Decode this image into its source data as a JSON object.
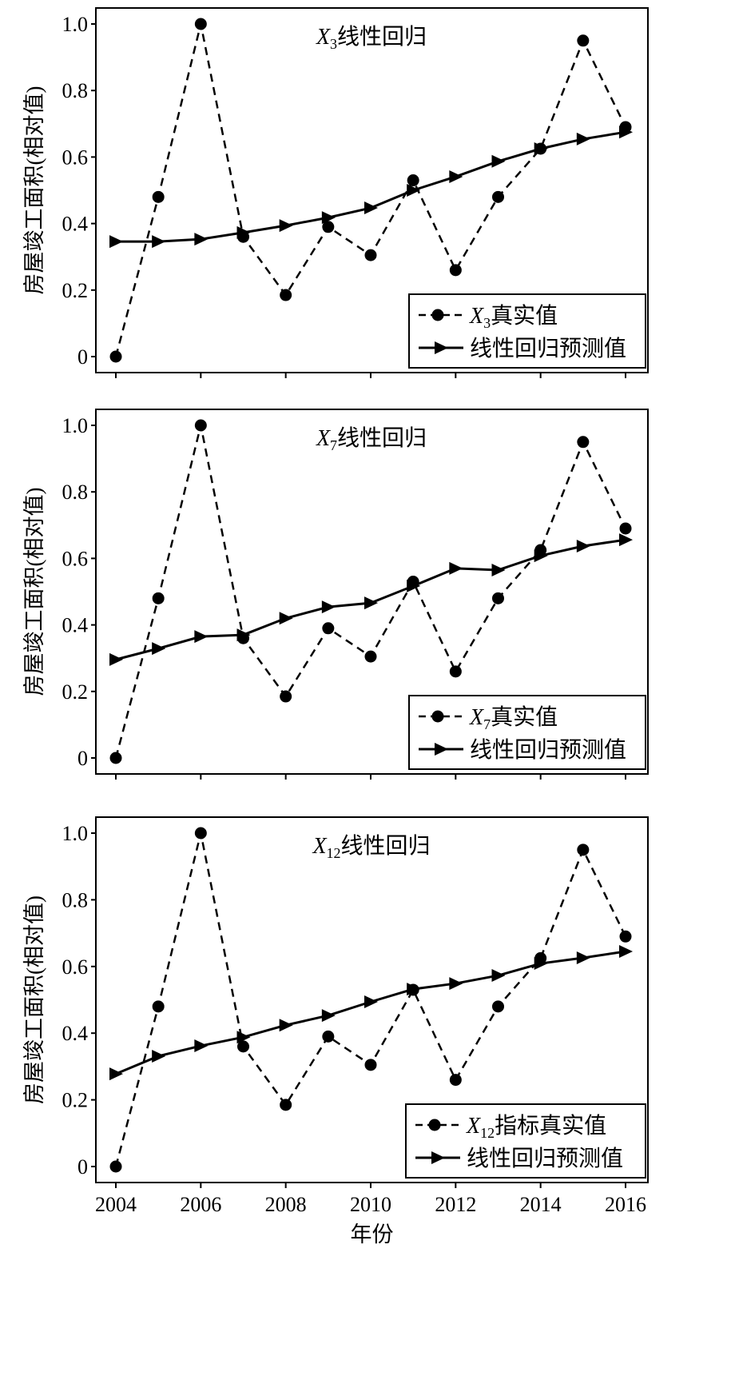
{
  "chart_data": [
    {
      "type": "line",
      "title": {
        "var": "X",
        "sub": "3",
        "text": "线性回归"
      },
      "ylabel": "房屋竣工面积(相对值)",
      "xlabel": "",
      "ylim": [
        0,
        1.0
      ],
      "yticks": [
        "0",
        "0.2",
        "0.4",
        "0.6",
        "0.8",
        "1.0"
      ],
      "x": [
        2004,
        2005,
        2006,
        2007,
        2008,
        2009,
        2010,
        2011,
        2012,
        2013,
        2014,
        2015,
        2016
      ],
      "legend_position": "bottom-right",
      "series": [
        {
          "name": "X3真实值",
          "legend": {
            "var": "X",
            "sub": "3",
            "text": "真实值"
          },
          "style": "dashed-circle",
          "values": [
            0,
            0.48,
            1.0,
            0.36,
            0.185,
            0.39,
            0.305,
            0.53,
            0.26,
            0.48,
            0.625,
            0.95,
            0.69
          ]
        },
        {
          "name": "线性回归预测值",
          "legend": {
            "var": "",
            "sub": "",
            "text": "线性回归预测值"
          },
          "style": "solid-triangle",
          "values": [
            0.346,
            0.346,
            0.353,
            0.373,
            0.394,
            0.418,
            0.447,
            0.5,
            0.541,
            0.587,
            0.625,
            0.654,
            0.675
          ]
        }
      ]
    },
    {
      "type": "line",
      "title": {
        "var": "X",
        "sub": "7",
        "text": "线性回归"
      },
      "ylabel": "房屋竣工面积(相对值)",
      "xlabel": "",
      "ylim": [
        0,
        1.0
      ],
      "yticks": [
        "0",
        "0.2",
        "0.4",
        "0.6",
        "0.8",
        "1.0"
      ],
      "x": [
        2004,
        2005,
        2006,
        2007,
        2008,
        2009,
        2010,
        2011,
        2012,
        2013,
        2014,
        2015,
        2016
      ],
      "legend_position": "bottom-right",
      "series": [
        {
          "name": "X7真实值",
          "legend": {
            "var": "X",
            "sub": "7",
            "text": "真实值"
          },
          "style": "dashed-circle",
          "values": [
            0,
            0.48,
            1.0,
            0.36,
            0.185,
            0.39,
            0.305,
            0.53,
            0.26,
            0.48,
            0.625,
            0.95,
            0.69
          ]
        },
        {
          "name": "线性回归预测值",
          "legend": {
            "var": "",
            "sub": "",
            "text": "线性回归预测值"
          },
          "style": "solid-triangle",
          "values": [
            0.296,
            0.329,
            0.365,
            0.37,
            0.42,
            0.454,
            0.466,
            0.517,
            0.57,
            0.565,
            0.608,
            0.637,
            0.656
          ]
        }
      ]
    },
    {
      "type": "line",
      "title": {
        "var": "X",
        "sub": "12",
        "text": "线性回归"
      },
      "ylabel": "房屋竣工面积(相对值)",
      "xlabel": "年份",
      "ylim": [
        0,
        1.0
      ],
      "yticks": [
        "0",
        "0.2",
        "0.4",
        "0.6",
        "0.8",
        "1.0"
      ],
      "xticks": [
        "2004",
        "2006",
        "2008",
        "2010",
        "2012",
        "2014",
        "2016"
      ],
      "x": [
        2004,
        2005,
        2006,
        2007,
        2008,
        2009,
        2010,
        2011,
        2012,
        2013,
        2014,
        2015,
        2016
      ],
      "legend_position": "bottom-right",
      "series": [
        {
          "name": "X12指标真实值",
          "legend": {
            "var": "X",
            "sub": "12",
            "text": "指标真实值"
          },
          "style": "dashed-circle",
          "values": [
            0,
            0.48,
            1.0,
            0.36,
            0.185,
            0.39,
            0.305,
            0.53,
            0.26,
            0.48,
            0.625,
            0.95,
            0.69
          ]
        },
        {
          "name": "线性回归预测值",
          "legend": {
            "var": "",
            "sub": "",
            "text": "线性回归预测值"
          },
          "style": "solid-triangle",
          "values": [
            0.278,
            0.331,
            0.362,
            0.388,
            0.424,
            0.453,
            0.494,
            0.532,
            0.549,
            0.573,
            0.609,
            0.626,
            0.645
          ]
        }
      ]
    }
  ]
}
